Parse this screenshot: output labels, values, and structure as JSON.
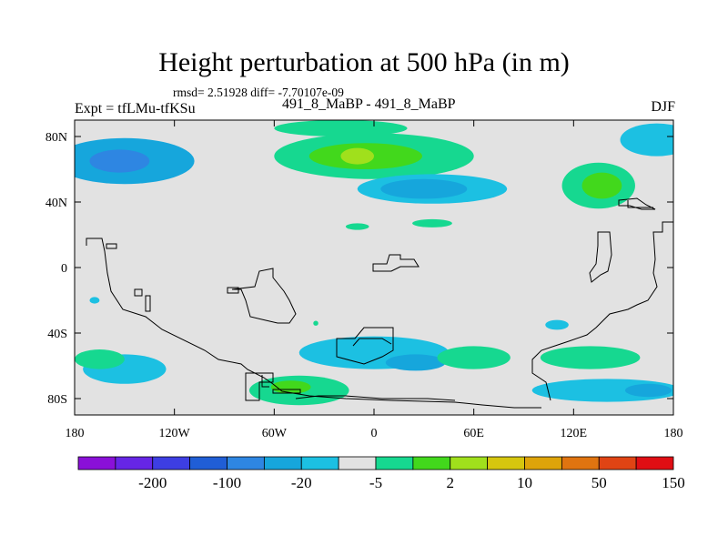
{
  "title": "Height perturbation at 500 hPa (in m)",
  "stats": "rmsd= 2.51928 diff= -7.70107e-09",
  "left_string": "Expt = tfLMu-tfKSu",
  "center_string": "491_8_MaBP - 491_8_MaBP",
  "right_string": "DJF",
  "chart_data": {
    "type": "heatmap",
    "title": "Height perturbation at 500 hPa (in m)",
    "variable": "500 hPa height perturbation (m)",
    "xlabel": "",
    "ylabel": "",
    "x_range": [
      -180,
      180
    ],
    "y_range": [
      -90,
      90
    ],
    "x_ticks": [
      {
        "value": -180,
        "label": "180"
      },
      {
        "value": -120,
        "label": "120W"
      },
      {
        "value": -60,
        "label": "60W"
      },
      {
        "value": 0,
        "label": "0"
      },
      {
        "value": 60,
        "label": "60E"
      },
      {
        "value": 120,
        "label": "120E"
      },
      {
        "value": 180,
        "label": "180"
      }
    ],
    "y_ticks": [
      {
        "value": 80,
        "label": "80N"
      },
      {
        "value": 40,
        "label": "40N"
      },
      {
        "value": 0,
        "label": "0"
      },
      {
        "value": -40,
        "label": "40S"
      },
      {
        "value": -80,
        "label": "80S"
      }
    ],
    "colorbar": {
      "colors": [
        "#8a10d8",
        "#6626e6",
        "#3d3ee3",
        "#205ed6",
        "#2e86e2",
        "#16a6dc",
        "#1cc0e2",
        "#e2e2e2",
        "#16d890",
        "#42d81c",
        "#a0e01c",
        "#d6c60e",
        "#dea40a",
        "#e07410",
        "#e04414",
        "#e00e14"
      ],
      "labels": [
        {
          "after": 1,
          "text": "-200"
        },
        {
          "after": 3,
          "text": "-100"
        },
        {
          "after": 5,
          "text": "-20"
        },
        {
          "after": 7,
          "text": "-5"
        },
        {
          "after": 9,
          "text": "2"
        },
        {
          "after": 11,
          "text": "10"
        },
        {
          "after": 13,
          "text": "50"
        },
        {
          "after": 15,
          "text": "150"
        }
      ]
    },
    "features": [
      {
        "name": "pacific-low-north",
        "type": "blob",
        "lon": -150,
        "lat": 65,
        "rx": 42,
        "ry": 14,
        "level": 5
      },
      {
        "name": "pacific-low-north-core",
        "type": "blob",
        "lon": -153,
        "lat": 65,
        "rx": 18,
        "ry": 7,
        "level": 4
      },
      {
        "name": "atlantic-high-north",
        "type": "blob",
        "lon": 0,
        "lat": 68,
        "rx": 60,
        "ry": 14,
        "level": 8
      },
      {
        "name": "atlantic-high-north-inner",
        "type": "blob",
        "lon": -5,
        "lat": 68,
        "rx": 34,
        "ry": 8,
        "level": 9
      },
      {
        "name": "atlantic-high-north-core",
        "type": "blob",
        "lon": -10,
        "lat": 68,
        "rx": 10,
        "ry": 5,
        "level": 10
      },
      {
        "name": "arctic-high",
        "type": "blob",
        "lon": -20,
        "lat": 85,
        "rx": 40,
        "ry": 5,
        "level": 8
      },
      {
        "name": "eurasia-low",
        "type": "blob",
        "lon": 35,
        "lat": 48,
        "rx": 45,
        "ry": 9,
        "level": 6
      },
      {
        "name": "eurasia-low-core",
        "type": "blob",
        "lon": 30,
        "lat": 48,
        "rx": 26,
        "ry": 6,
        "level": 5
      },
      {
        "name": "pacific-high-east",
        "type": "blob",
        "lon": 135,
        "lat": 50,
        "rx": 22,
        "ry": 14,
        "level": 8
      },
      {
        "name": "pacific-high-east-core",
        "type": "blob",
        "lon": 137,
        "lat": 50,
        "rx": 12,
        "ry": 8,
        "level": 9
      },
      {
        "name": "arctic-low-east",
        "type": "blob",
        "lon": 170,
        "lat": 78,
        "rx": 22,
        "ry": 10,
        "level": 6
      },
      {
        "name": "south-band-atlantic",
        "type": "blob",
        "lon": 0,
        "lat": -52,
        "rx": 45,
        "ry": 10,
        "level": 6
      },
      {
        "name": "south-band-atlantic-core",
        "type": "blob",
        "lon": 25,
        "lat": -58,
        "rx": 18,
        "ry": 5,
        "level": 5
      },
      {
        "name": "south-band-west",
        "type": "blob",
        "lon": -150,
        "lat": -62,
        "rx": 25,
        "ry": 9,
        "level": 6
      },
      {
        "name": "south-band-west-green",
        "type": "blob",
        "lon": -165,
        "lat": -56,
        "rx": 15,
        "ry": 6,
        "level": 8
      },
      {
        "name": "antarctic-high",
        "type": "blob",
        "lon": -45,
        "lat": -75,
        "rx": 30,
        "ry": 9,
        "level": 8
      },
      {
        "name": "antarctic-high-core",
        "type": "blob",
        "lon": -50,
        "lat": -73,
        "rx": 12,
        "ry": 4,
        "level": 9
      },
      {
        "name": "indian-ocean-high",
        "type": "blob",
        "lon": 60,
        "lat": -55,
        "rx": 22,
        "ry": 7,
        "level": 8
      },
      {
        "name": "pacific-south-high",
        "type": "blob",
        "lon": 130,
        "lat": -55,
        "rx": 30,
        "ry": 7,
        "level": 8
      },
      {
        "name": "southern-pacific-low",
        "type": "blob",
        "lon": 140,
        "lat": -75,
        "rx": 45,
        "ry": 7,
        "level": 6
      },
      {
        "name": "southern-pacific-low-core",
        "type": "blob",
        "lon": 165,
        "lat": -75,
        "rx": 14,
        "ry": 4,
        "level": 5
      },
      {
        "name": "subtropic-cell-1",
        "type": "blob",
        "lon": -10,
        "lat": 25,
        "rx": 7,
        "ry": 2,
        "level": 8
      },
      {
        "name": "subtropic-cell-2",
        "type": "blob",
        "lon": 35,
        "lat": 27,
        "rx": 12,
        "ry": 2.5,
        "level": 8
      },
      {
        "name": "tropical-cell-1",
        "type": "blob",
        "lon": -168,
        "lat": -20,
        "rx": 3,
        "ry": 2,
        "level": 6
      },
      {
        "name": "tropical-cell-2",
        "type": "blob",
        "lon": 110,
        "lat": -35,
        "rx": 7,
        "ry": 3,
        "level": 6
      },
      {
        "name": "tropical-cell-3",
        "type": "blob",
        "lon": -35,
        "lat": -34,
        "rx": 1.5,
        "ry": 1.5,
        "level": 8
      }
    ]
  }
}
